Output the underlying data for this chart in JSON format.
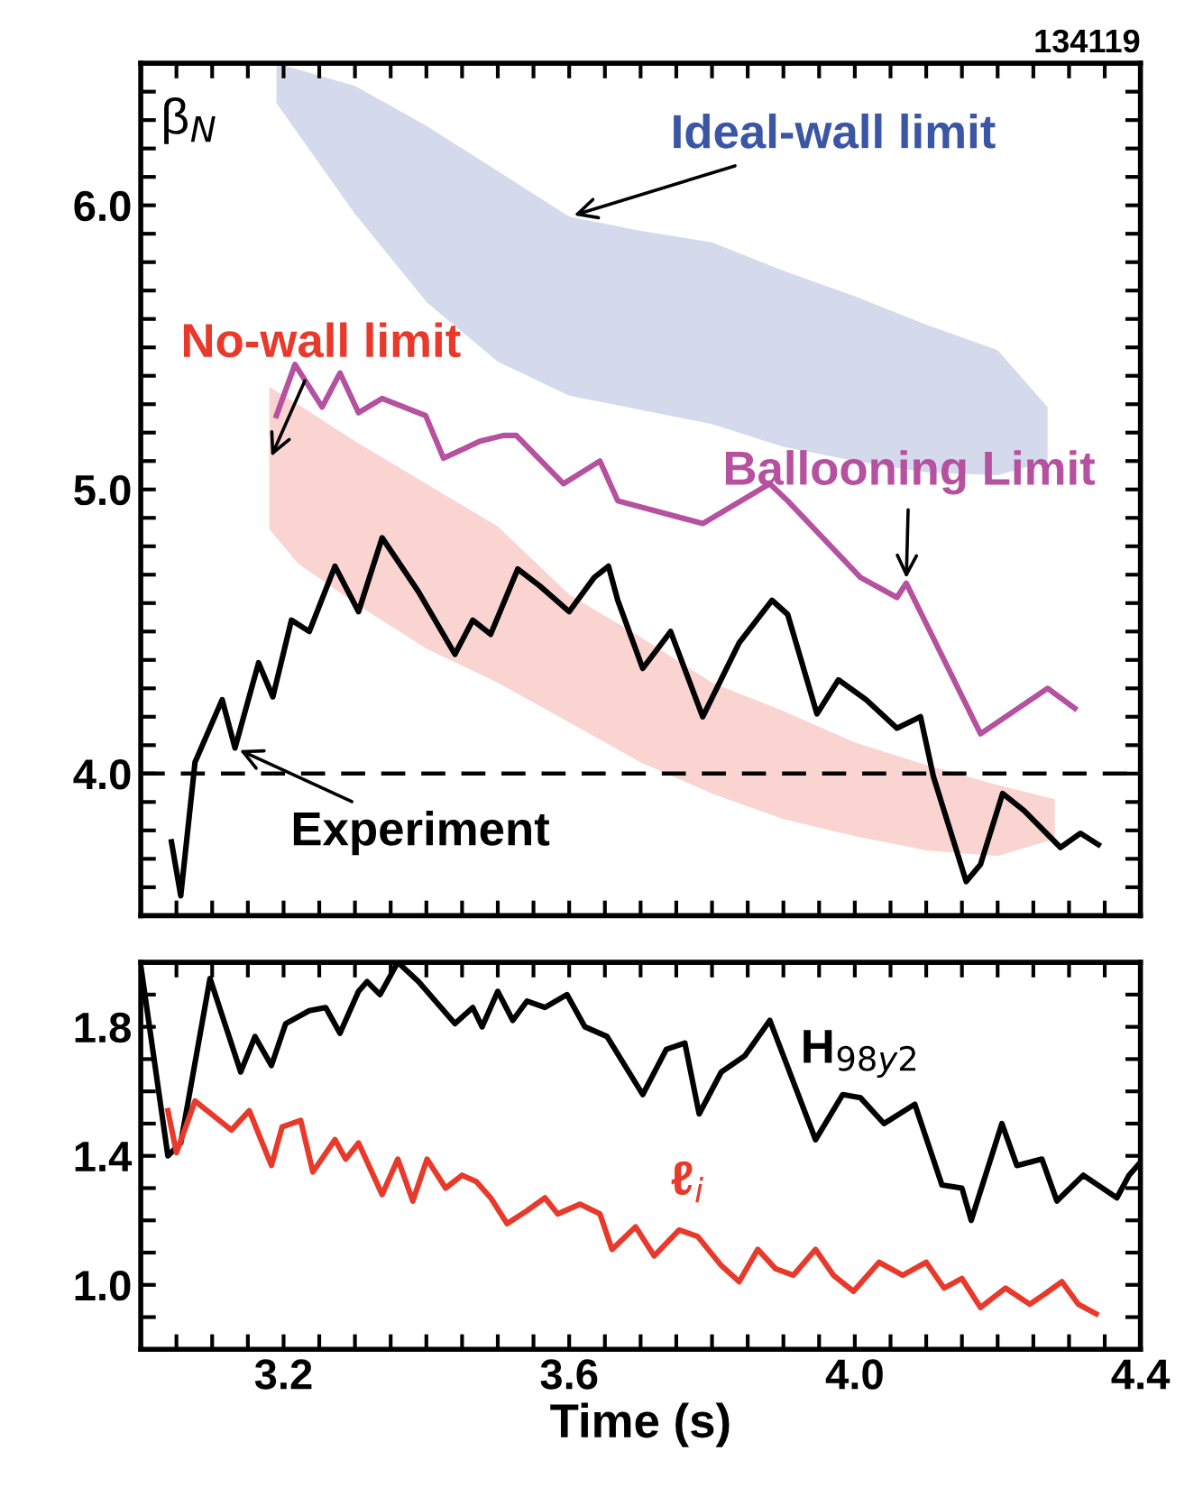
{
  "chart_data": [
    {
      "type": "line",
      "ylabel": "β$_{N}$",
      "annotations": [
        "134119",
        {
          "text": "Ideal-wall limit",
          "x": 3.6,
          "y": 5.96
        },
        {
          "text": "No-wall limit",
          "x": 3.18,
          "y": 5.1
        },
        {
          "text": "Ballooning Limit",
          "x": 4.072,
          "y": 4.67
        },
        {
          "text": "Experiment",
          "x": 3.132,
          "y": 4.09
        }
      ],
      "xlim": [
        3.0,
        4.4
      ],
      "ylim": [
        3.5,
        6.5
      ],
      "tick_labels": "y",
      "grid": false,
      "legend": false,
      "xticks": [
        {
          "value": 3.0,
          "label": null
        },
        {
          "value": 3.05,
          "label": null
        },
        {
          "value": 3.1,
          "label": null
        },
        {
          "value": 3.15,
          "label": null
        },
        3.2,
        {
          "value": 3.25,
          "label": null
        },
        {
          "value": 3.3,
          "label": null
        },
        {
          "value": 3.35,
          "label": null
        },
        {
          "value": 3.4,
          "label": null
        },
        {
          "value": 3.45,
          "label": null
        },
        {
          "value": 3.5,
          "label": null
        },
        {
          "value": 3.55,
          "label": null
        },
        3.6,
        {
          "value": 3.65,
          "label": null
        },
        {
          "value": 3.7,
          "label": null
        },
        {
          "value": 3.75,
          "label": null
        },
        {
          "value": 3.8,
          "label": null
        },
        {
          "value": 3.85,
          "label": null
        },
        {
          "value": 3.9,
          "label": null
        },
        {
          "value": 3.95,
          "label": null
        },
        {
          "value": 4.0,
          "label": null
        },
        {
          "value": 4.05,
          "label": null
        },
        {
          "value": 4.1,
          "label": null
        },
        {
          "value": 4.15,
          "label": null
        },
        {
          "value": 4.2,
          "label": null
        },
        {
          "value": 4.25,
          "label": null
        },
        {
          "value": 4.3,
          "label": null
        },
        {
          "value": 4.35,
          "label": null
        },
        4.4
      ],
      "yticks": [
        {
          "value": 3.5,
          "label": null
        },
        {
          "value": 3.6,
          "label": null
        },
        {
          "value": 3.7,
          "label": null
        },
        {
          "value": 3.8,
          "label": null
        },
        {
          "value": 3.9,
          "label": null
        },
        {
          "value": 4.0,
          "label": "4.0"
        },
        {
          "value": 4.1,
          "label": null
        },
        {
          "value": 4.2,
          "label": null
        },
        {
          "value": 4.3,
          "label": null
        },
        {
          "value": 4.4,
          "label": null
        },
        {
          "value": 4.5,
          "label": null
        },
        {
          "value": 4.6,
          "label": null
        },
        {
          "value": 4.7,
          "label": null
        },
        {
          "value": 4.8,
          "label": null
        },
        {
          "value": 4.9,
          "label": null
        },
        {
          "value": 5.0,
          "label": "5.0"
        },
        {
          "value": 5.1,
          "label": null
        },
        {
          "value": 5.2,
          "label": null
        },
        {
          "value": 5.3,
          "label": null
        },
        {
          "value": 5.4,
          "label": null
        },
        {
          "value": 5.5,
          "label": null
        },
        {
          "value": 5.6,
          "label": null
        },
        {
          "value": 5.7,
          "label": null
        },
        {
          "value": 5.8,
          "label": null
        },
        {
          "value": 5.9,
          "label": null
        },
        {
          "value": 6.0,
          "label": "6.0"
        },
        {
          "value": 6.1,
          "label": null
        },
        {
          "value": 6.2,
          "label": null
        },
        {
          "value": 6.3,
          "label": null
        },
        {
          "value": 6.4,
          "label": null
        },
        {
          "value": 6.5,
          "label": null
        }
      ],
      "ref_lines": [
        {
          "axis": "y",
          "value": 4.0,
          "line_style": "dashed",
          "color": "#000000"
        }
      ],
      "series": [
        {
          "type": "line",
          "color": "#3a56a4",
          "x": [
            3.19,
            3.3,
            3.4,
            3.5,
            3.6,
            3.7,
            3.8,
            3.9,
            4.0,
            4.1,
            4.2,
            4.27
          ],
          "values": [
            null,
            null,
            null,
            null,
            null,
            null,
            null,
            null,
            null,
            null,
            null,
            null
          ],
          "upper": [
            6.5,
            6.42,
            6.28,
            6.12,
            5.96,
            5.91,
            5.87,
            5.77,
            5.68,
            5.58,
            5.49,
            5.29
          ],
          "lower": [
            6.36,
            5.97,
            5.66,
            5.45,
            5.33,
            5.28,
            5.23,
            5.15,
            5.1,
            5.06,
            5.05,
            5.1
          ]
        },
        {
          "type": "line",
          "color": "#e8392b",
          "x": [
            3.18,
            3.22,
            3.3,
            3.4,
            3.5,
            3.6,
            3.7,
            3.8,
            3.9,
            4.0,
            4.1,
            4.2,
            4.28
          ],
          "values": [
            null,
            null,
            null,
            null,
            null,
            null,
            null,
            null,
            null,
            null,
            null,
            null,
            null
          ],
          "upper": [
            5.36,
            5.3,
            5.17,
            5.02,
            4.87,
            4.63,
            4.48,
            4.32,
            4.22,
            4.11,
            4.03,
            3.96,
            3.91
          ],
          "lower": [
            4.86,
            4.74,
            4.6,
            4.44,
            4.32,
            4.18,
            4.04,
            3.93,
            3.84,
            3.78,
            3.73,
            3.71,
            3.77
          ]
        },
        {
          "type": "line",
          "color": "#b5519f",
          "x": [
            3.19,
            3.216,
            3.254,
            3.279,
            3.305,
            3.338,
            3.399,
            3.424,
            3.475,
            3.508,
            3.526,
            3.592,
            3.643,
            3.668,
            3.787,
            3.881,
            3.906,
            4.008,
            4.059,
            4.072,
            4.176,
            4.27,
            4.308
          ],
          "values": [
            5.26,
            5.44,
            5.29,
            5.41,
            5.27,
            5.32,
            5.26,
            5.11,
            5.17,
            5.19,
            5.19,
            5.02,
            5.1,
            4.96,
            4.88,
            5.02,
            4.96,
            4.69,
            4.62,
            4.67,
            4.14,
            4.3,
            4.23
          ]
        },
        {
          "type": "line",
          "color": "#000000",
          "x": [
            3.043,
            3.056,
            3.076,
            3.114,
            3.132,
            3.165,
            3.185,
            3.211,
            3.236,
            3.272,
            3.305,
            3.338,
            3.389,
            3.44,
            3.465,
            3.49,
            3.528,
            3.559,
            3.6,
            3.635,
            3.655,
            3.668,
            3.703,
            3.742,
            3.787,
            3.838,
            3.884,
            3.906,
            3.947,
            3.977,
            4.016,
            4.059,
            4.092,
            4.11,
            4.156,
            4.176,
            4.207,
            4.237,
            4.288,
            4.316,
            4.341
          ],
          "values": [
            3.76,
            3.57,
            4.04,
            4.26,
            4.09,
            4.39,
            4.27,
            4.54,
            4.5,
            4.73,
            4.57,
            4.83,
            4.64,
            4.42,
            4.54,
            4.49,
            4.72,
            4.66,
            4.57,
            4.69,
            4.73,
            4.61,
            4.37,
            4.5,
            4.2,
            4.46,
            4.61,
            4.56,
            4.21,
            4.33,
            4.26,
            4.16,
            4.2,
            3.99,
            3.62,
            3.68,
            3.93,
            3.87,
            3.74,
            3.79,
            3.75
          ]
        }
      ]
    },
    {
      "type": "line",
      "xlabel": "Time (s)",
      "xlim": [
        3.0,
        4.4
      ],
      "ylim": [
        0.8,
        2.0
      ],
      "grid": false,
      "xticks": [
        {
          "value": 3.0,
          "label": null
        },
        {
          "value": 3.05,
          "label": null
        },
        {
          "value": 3.1,
          "label": null
        },
        {
          "value": 3.15,
          "label": null
        },
        3.2,
        {
          "value": 3.25,
          "label": null
        },
        {
          "value": 3.3,
          "label": null
        },
        {
          "value": 3.35,
          "label": null
        },
        {
          "value": 3.4,
          "label": null
        },
        {
          "value": 3.45,
          "label": null
        },
        {
          "value": 3.5,
          "label": null
        },
        {
          "value": 3.55,
          "label": null
        },
        3.6,
        {
          "value": 3.65,
          "label": null
        },
        {
          "value": 3.7,
          "label": null
        },
        {
          "value": 3.75,
          "label": null
        },
        {
          "value": 3.8,
          "label": null
        },
        {
          "value": 3.85,
          "label": null
        },
        {
          "value": 3.9,
          "label": null
        },
        {
          "value": 3.95,
          "label": null
        },
        {
          "value": 4.0,
          "label": "4.0"
        },
        {
          "value": 4.05,
          "label": null
        },
        {
          "value": 4.1,
          "label": null
        },
        {
          "value": 4.15,
          "label": null
        },
        {
          "value": 4.2,
          "label": null
        },
        {
          "value": 4.25,
          "label": null
        },
        {
          "value": 4.3,
          "label": null
        },
        {
          "value": 4.35,
          "label": null
        },
        4.4
      ],
      "yticks": [
        {
          "value": 0.8,
          "label": null
        },
        {
          "value": 0.9,
          "label": null
        },
        {
          "value": 1.0,
          "label": "1.0"
        },
        {
          "value": 1.1,
          "label": null
        },
        {
          "value": 1.2,
          "label": null
        },
        {
          "value": 1.3,
          "label": null
        },
        1.4,
        {
          "value": 1.5,
          "label": null
        },
        {
          "value": 1.6,
          "label": null
        },
        {
          "value": 1.7,
          "label": null
        },
        1.8,
        {
          "value": 1.9,
          "label": null
        },
        {
          "value": 2.0,
          "label": null
        }
      ],
      "series": [
        {
          "name": "H$_{98y2}$",
          "type": "line",
          "color": "#000000",
          "x": [
            3.0,
            3.038,
            3.056,
            3.097,
            3.14,
            3.16,
            3.183,
            3.203,
            3.236,
            3.259,
            3.279,
            3.305,
            3.317,
            3.335,
            3.36,
            3.389,
            3.44,
            3.465,
            3.478,
            3.5,
            3.521,
            3.541,
            3.566,
            3.597,
            3.622,
            3.653,
            3.703,
            3.736,
            3.762,
            3.782,
            3.813,
            3.846,
            3.881,
            3.945,
            3.983,
            4.008,
            4.041,
            4.084,
            4.122,
            4.15,
            4.163,
            4.206,
            4.227,
            4.262,
            4.283,
            4.32,
            4.367,
            4.384,
            4.4
          ],
          "values": [
            1.99,
            1.4,
            1.44,
            1.95,
            1.66,
            1.77,
            1.68,
            1.81,
            1.85,
            1.86,
            1.78,
            1.91,
            1.94,
            1.9,
            2.0,
            1.94,
            1.81,
            1.86,
            1.8,
            1.91,
            1.82,
            1.88,
            1.86,
            1.9,
            1.8,
            1.77,
            1.59,
            1.73,
            1.75,
            1.53,
            1.66,
            1.71,
            1.82,
            1.45,
            1.59,
            1.58,
            1.5,
            1.56,
            1.31,
            1.3,
            1.2,
            1.5,
            1.37,
            1.39,
            1.26,
            1.34,
            1.27,
            1.34,
            1.38
          ]
        },
        {
          "name": "ℓ$_{i}$",
          "type": "line",
          "color": "#e8392b",
          "x": [
            3.038,
            3.05,
            3.076,
            3.127,
            3.152,
            3.183,
            3.198,
            3.224,
            3.241,
            3.272,
            3.287,
            3.305,
            3.338,
            3.36,
            3.381,
            3.401,
            3.427,
            3.45,
            3.47,
            3.49,
            3.513,
            3.541,
            3.566,
            3.584,
            3.615,
            3.643,
            3.66,
            3.693,
            3.719,
            3.754,
            3.78,
            3.813,
            3.838,
            3.864,
            3.889,
            3.914,
            3.945,
            3.97,
            3.998,
            4.034,
            4.067,
            4.1,
            4.125,
            4.15,
            4.176,
            4.211,
            4.245,
            4.265,
            4.29,
            4.313,
            4.338
          ],
          "values": [
            1.54,
            1.41,
            1.57,
            1.48,
            1.54,
            1.37,
            1.49,
            1.51,
            1.35,
            1.45,
            1.39,
            1.44,
            1.28,
            1.39,
            1.26,
            1.39,
            1.3,
            1.34,
            1.32,
            1.27,
            1.19,
            1.23,
            1.27,
            1.22,
            1.25,
            1.22,
            1.11,
            1.18,
            1.09,
            1.17,
            1.15,
            1.06,
            1.01,
            1.11,
            1.05,
            1.03,
            1.11,
            1.03,
            0.98,
            1.07,
            1.03,
            1.07,
            0.99,
            1.02,
            0.93,
            0.99,
            0.94,
            0.97,
            1.01,
            0.94,
            0.91
          ]
        }
      ]
    }
  ]
}
